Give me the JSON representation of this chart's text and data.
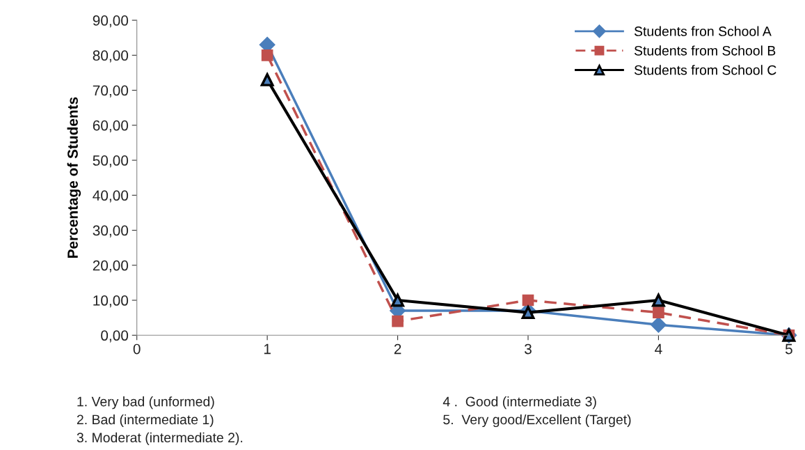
{
  "chart_data": {
    "type": "line",
    "ylabel": "Percentage of Students",
    "x": [
      1,
      2,
      3,
      4,
      5
    ],
    "xlim": [
      0,
      5
    ],
    "xticks": [
      0,
      1,
      2,
      3,
      4,
      5
    ],
    "ylim": [
      0,
      90
    ],
    "yticks": [
      {
        "value": 0,
        "label": "0,00"
      },
      {
        "value": 10,
        "label": "10,00"
      },
      {
        "value": 20,
        "label": "20,00"
      },
      {
        "value": 30,
        "label": "30,00"
      },
      {
        "value": 40,
        "label": "40,00"
      },
      {
        "value": 50,
        "label": "50,00"
      },
      {
        "value": 60,
        "label": "60,00"
      },
      {
        "value": 70,
        "label": "70,00"
      },
      {
        "value": 80,
        "label": "80,00"
      },
      {
        "value": 90,
        "label": "90,00"
      }
    ],
    "grid": false,
    "legend": "top right",
    "series": [
      {
        "name": "Students fron School A",
        "color": "#4a7ebb",
        "marker": "diamond",
        "line_style": "solid",
        "values": [
          83,
          7,
          7,
          3,
          0
        ]
      },
      {
        "name": "Students from School B",
        "color": "#c0504d",
        "marker": "square",
        "line_style": "dashed",
        "values": [
          80,
          4,
          10,
          6.5,
          0
        ]
      },
      {
        "name": "Students from School C",
        "color": "#000000",
        "marker": "triangle",
        "line_style": "solid",
        "values": [
          73,
          10,
          6.5,
          10,
          0
        ]
      }
    ],
    "annotations": [
      "1. Very bad (unformed)",
      "2. Bad (intermediate 1)",
      "3. Moderat (intermediate 2).",
      "4 .  Good (intermediate 3)",
      "5.  Very good/Excellent (Target)"
    ]
  }
}
